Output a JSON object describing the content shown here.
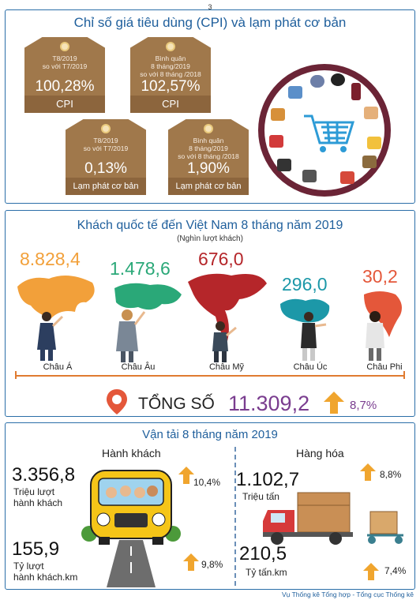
{
  "page_number": "3",
  "cpi": {
    "title": "Chỉ số giá tiêu dùng (CPI) và lạm phát cơ bản",
    "tags": [
      {
        "sub": "T8/2019\nso với T7/2019",
        "value": "100,28%",
        "label": "CPI"
      },
      {
        "sub": "Bình quân\n8 tháng/2019\nso với 8 tháng /2018",
        "value": "102,57%",
        "label": "CPI"
      },
      {
        "sub": "T8/2019\nso với T7/2019",
        "value": "0,13%",
        "label": "Lạm phát cơ bản"
      },
      {
        "sub": "Bình quân\n8 tháng/2019\nso với 8 tháng /2018",
        "value": "1,90%",
        "label": "Lạm phát cơ bản"
      }
    ]
  },
  "tourism": {
    "title": "Khách quốc tế đến Việt Nam 8 tháng năm 2019",
    "subtitle": "(Nghìn lượt khách)",
    "continents": [
      {
        "name": "Châu Á",
        "value": "8.828,4",
        "color": "#f2a03a"
      },
      {
        "name": "Châu Âu",
        "value": "1.478,6",
        "color": "#2aa878"
      },
      {
        "name": "Châu Mỹ",
        "value": "676,0",
        "color": "#b5262a"
      },
      {
        "name": "Châu Úc",
        "value": "296,0",
        "color": "#1c98a8"
      },
      {
        "name": "Châu Phi",
        "value": "30,2",
        "color": "#e4573a"
      }
    ],
    "total_label": "TỔNG SỐ",
    "total_value": "11.309,2",
    "total_growth": "8,7%"
  },
  "transport": {
    "title": "Vận tải 8 tháng năm 2019",
    "passenger": {
      "title": "Hành khách",
      "volume_value": "3.356,8",
      "volume_unit": "Triệu lượt\nhành khách",
      "volume_growth": "10,4%",
      "distance_value": "155,9",
      "distance_unit": "Tỷ lượt\nhành khách.km",
      "distance_growth": "9,8%"
    },
    "cargo": {
      "title": "Hàng hóa",
      "volume_value": "1.102,7",
      "volume_unit": "Triệu tấn",
      "volume_growth": "8,8%",
      "distance_value": "210,5",
      "distance_unit": "Tỷ tấn.km",
      "distance_growth": "7,4%"
    }
  },
  "footer": "Vụ Thống kê Tổng hợp - Tổng cục Thống kê",
  "colors": {
    "panel_border": "#2b6fa8",
    "title_blue": "#1f5f9c",
    "tag_brown": "#a0784b",
    "arrow_orange": "#f0a52e",
    "total_purple": "#7a3d8f",
    "circle_border": "#6b2436"
  }
}
